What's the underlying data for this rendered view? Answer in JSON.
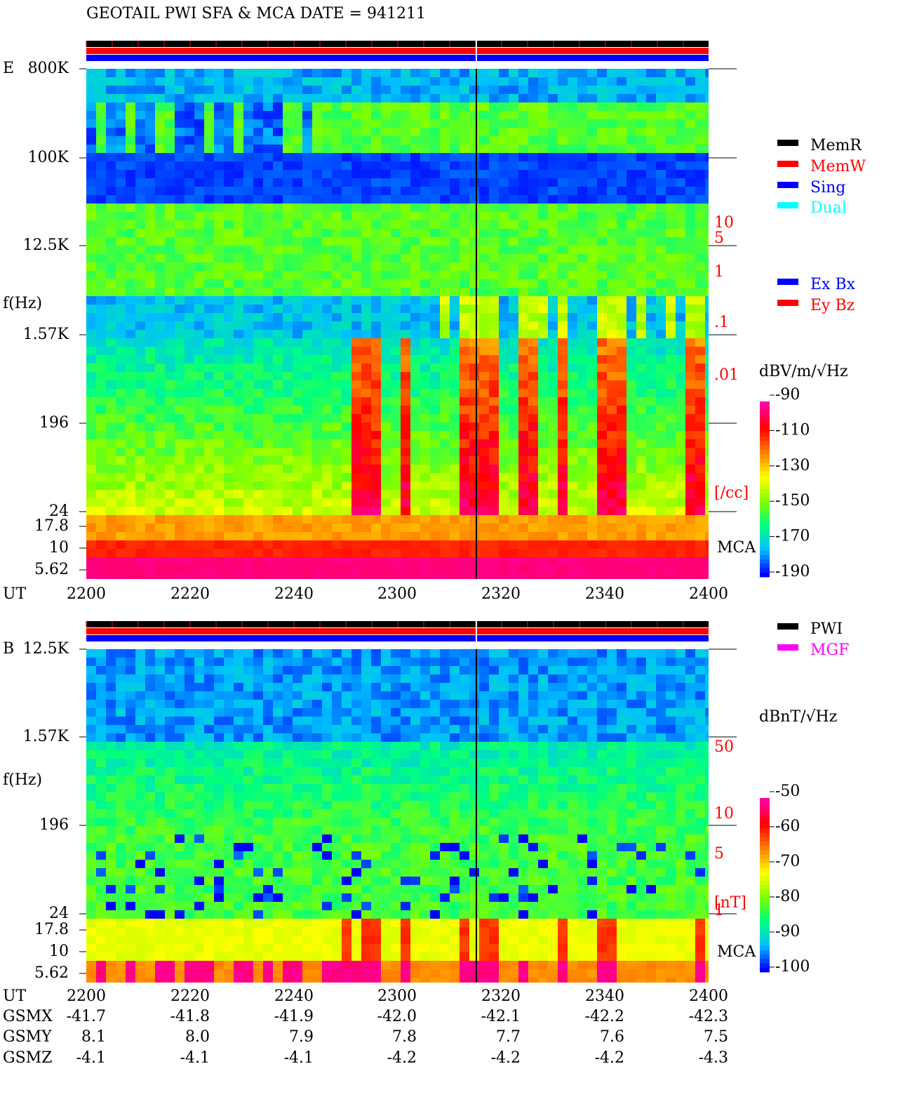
{
  "header": {
    "title": "GEOTAIL  PWI SFA & MCA   DATE = 941211"
  },
  "panels": [
    {
      "label": "E",
      "y_label": "f(Hz)",
      "y_ticks": [
        "800K",
        "100K",
        "12.5K",
        "1.57K",
        "196",
        "24",
        "17.8",
        "10",
        "5.62"
      ],
      "x_label": "UT",
      "x_ticks": [
        "2200",
        "2220",
        "2240",
        "2300",
        "2320",
        "2340",
        "2400"
      ],
      "right_scale": [
        "10",
        "5",
        "1",
        ".1",
        ".01",
        "[/cc]"
      ],
      "mca": "MCA",
      "legend": [
        "MemR",
        "MemW",
        "Sing",
        "Dual"
      ],
      "legend2": [
        "Ex Bx",
        "Ey Bz"
      ],
      "colorbar": {
        "unit": "dBV/m/√Hz",
        "ticks": [
          -90,
          -110,
          -130,
          -150,
          -170,
          -190
        ]
      }
    },
    {
      "label": "B",
      "y_label": "f(Hz)",
      "y_ticks": [
        "12.5K",
        "1.57K",
        "196",
        "24",
        "17.8",
        "10",
        "5.62"
      ],
      "x_label": "UT",
      "x_ticks": [
        "2200",
        "2220",
        "2240",
        "2300",
        "2320",
        "2340",
        "2400"
      ],
      "right_scale": [
        "50",
        "10",
        "5",
        "1",
        "[nT]"
      ],
      "mca": "MCA",
      "legend": [
        "PWI",
        "MGF"
      ],
      "colorbar": {
        "unit": "dBnT/√Hz",
        "ticks": [
          -50,
          -60,
          -70,
          -80,
          -90,
          -100
        ]
      }
    }
  ],
  "ephemeris": {
    "rows": [
      {
        "name": "GSMX",
        "values": [
          "-41.7",
          "-41.8",
          "-41.9",
          "-42.0",
          "-42.1",
          "-42.2",
          "-42.3"
        ]
      },
      {
        "name": "GSMY",
        "values": [
          "8.1",
          "8.0",
          "7.9",
          "7.8",
          "7.7",
          "7.6",
          "7.5"
        ]
      },
      {
        "name": "GSMZ",
        "values": [
          "-4.1",
          "-4.1",
          "-4.1",
          "-4.2",
          "-4.2",
          "-4.2",
          "-4.3"
        ]
      }
    ]
  }
}
